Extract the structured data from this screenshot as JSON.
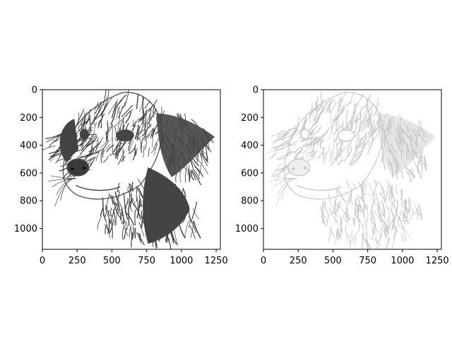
{
  "chart_data": [
    {
      "type": "image",
      "title": "",
      "xlabel": "",
      "ylabel": "",
      "xlim": [
        0,
        1280
      ],
      "ylim": [
        1150,
        0
      ],
      "xticks": [
        0,
        250,
        500,
        750,
        1000,
        1250
      ],
      "yticks": [
        0,
        200,
        400,
        600,
        800,
        1000
      ],
      "xtick_labels": [
        "0",
        "250",
        "500",
        "750",
        "1000",
        "1250"
      ],
      "ytick_labels": [
        "0",
        "200",
        "400",
        "600",
        "800",
        "1000"
      ],
      "image_content": "dog-portrait-sketch",
      "tone": "dark",
      "ink_color": "#444444"
    },
    {
      "type": "image",
      "title": "",
      "xlabel": "",
      "ylabel": "",
      "xlim": [
        0,
        1280
      ],
      "ylim": [
        1150,
        0
      ],
      "xticks": [
        0,
        250,
        500,
        750,
        1000,
        1250
      ],
      "yticks": [
        0,
        200,
        400,
        600,
        800,
        1000
      ],
      "xtick_labels": [
        "0",
        "250",
        "500",
        "750",
        "1000",
        "1250"
      ],
      "ytick_labels": [
        "0",
        "200",
        "400",
        "600",
        "800",
        "1000"
      ],
      "image_content": "dog-portrait-sketch",
      "tone": "light",
      "ink_color": "#c8c8c8"
    }
  ]
}
